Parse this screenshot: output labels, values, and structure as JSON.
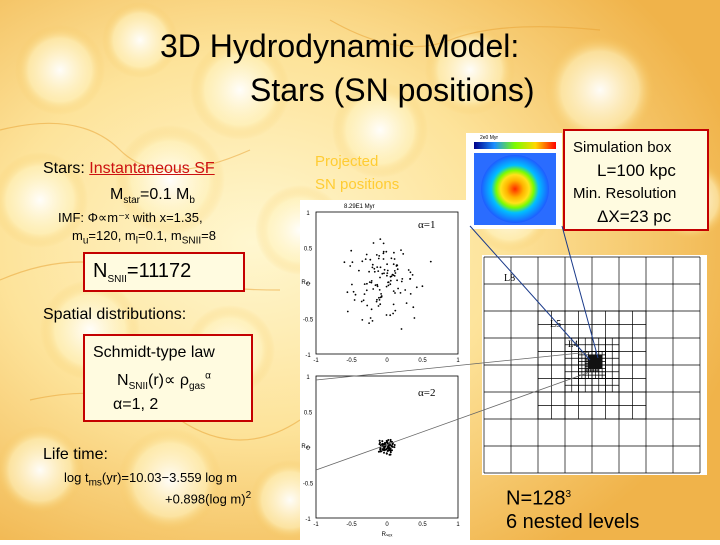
{
  "title": {
    "line1": "3D Hydrodynamic Model:",
    "line2": "Stars (SN positions)"
  },
  "stars": {
    "heading": "Stars:",
    "link": "Instantaneous SF",
    "mstar": "M",
    "mstar_sub": "star",
    "mstar_eq": "=0.1 M",
    "mstar_sub2": "b",
    "imf_line1": "IMF: Φ∝m⁻ˣ  with x=1.35,",
    "imf_line2a": "m",
    "imf_line2_sub1": "u",
    "imf_line2b": "=120, m",
    "imf_line2_sub2": "l",
    "imf_line2c": "=0.1, m",
    "imf_line2_sub3": "SNII",
    "imf_line2d": "=8"
  },
  "nsnii": {
    "label": "N",
    "sub": "SNII",
    "value": "=11172"
  },
  "spatial": {
    "heading": "Spatial distributions:"
  },
  "schmidt": {
    "title": "Schmidt-type law",
    "law_a": "N",
    "law_sub": "SNII",
    "law_b": "(r)∝ ρ",
    "law_sub2": "gas",
    "law_sup": "α",
    "alpha": "α=1,  2"
  },
  "life": {
    "heading": "Life time:",
    "eq1a": "log t",
    "eq1_sub": "ms",
    "eq1b": "(yr)=10.03−3.559 log m",
    "eq2": "+0.898(log m)",
    "eq2_sup": "2"
  },
  "projected": {
    "line1": "Projected",
    "line2": "SN positions"
  },
  "simbox": {
    "title": "Simulation box",
    "size": "L=100 kpc",
    "res_label": "Min. Resolution",
    "res_value": "ΔX=23 pc"
  },
  "grid": {
    "levels": [
      "L8",
      "L5",
      "L4"
    ],
    "n": "N=128",
    "n_sup": "3",
    "nested": "6 nested levels"
  },
  "plots": {
    "top": {
      "header": "8.29E1 Myr",
      "alpha": "α=1"
    },
    "bottom": {
      "alpha": "α=2"
    },
    "xticks": [
      "-1",
      "-0.5",
      "0",
      "0.5",
      "1"
    ],
    "yticks": [
      "1",
      "0.5",
      "0",
      "-0.5",
      "-1"
    ],
    "ylabel": "Rₚₛ",
    "xlabel": "Rₛₑₓ"
  },
  "thumb": {
    "header": "2e0 Myr"
  },
  "colors": {
    "box_border": "#c40000",
    "link": "#cc1010",
    "projected": "#ffcc33"
  }
}
